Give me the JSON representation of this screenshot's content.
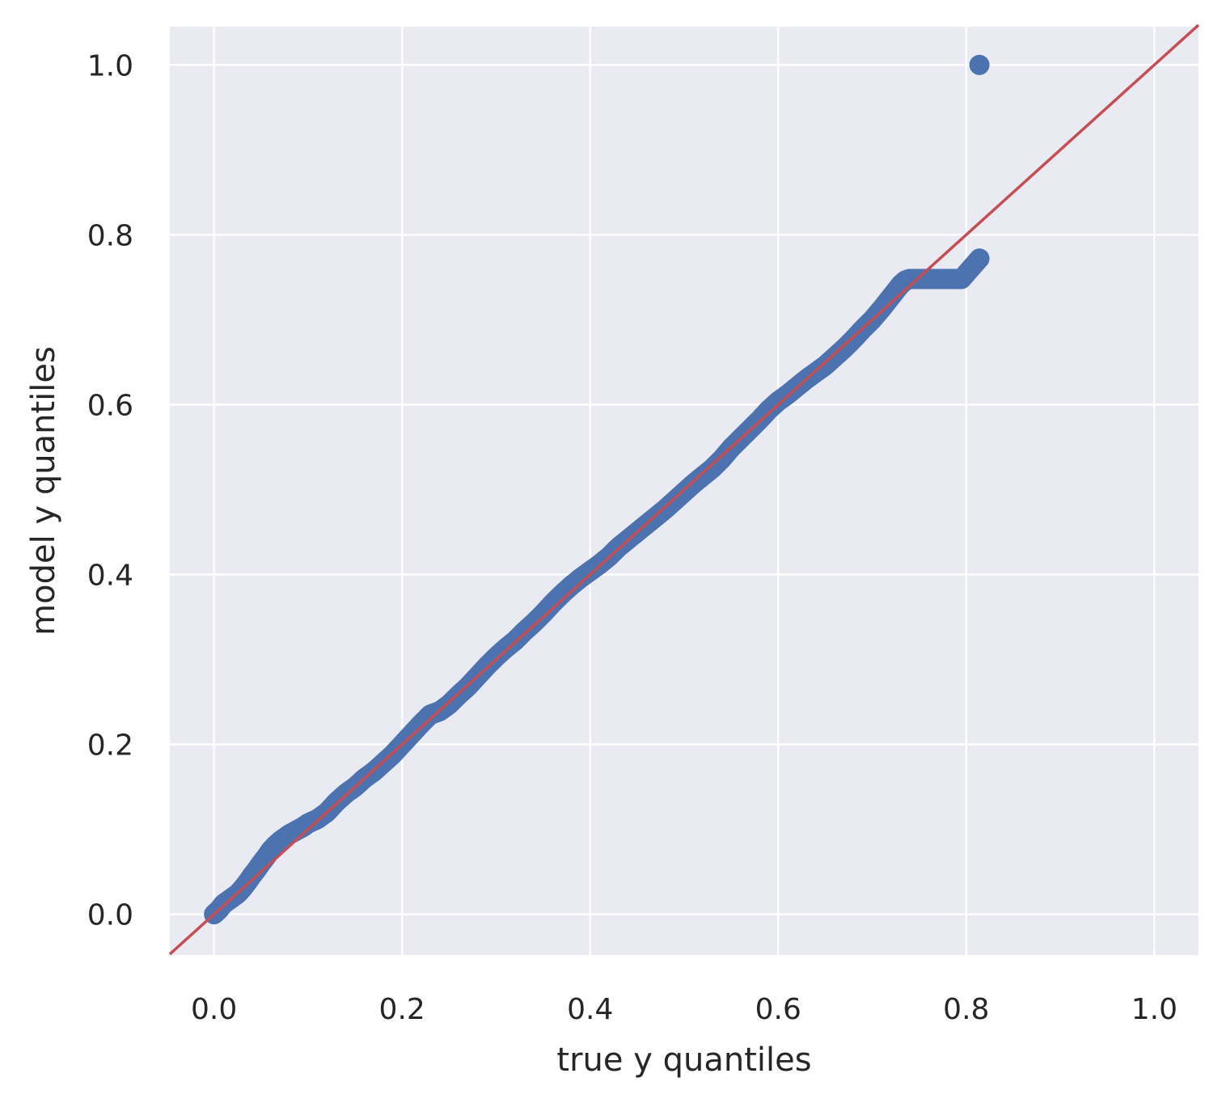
{
  "chart_data": {
    "type": "scatter",
    "title": "",
    "xlabel": "true y quantiles",
    "ylabel": "model y quantiles",
    "xlim": [
      -0.047,
      1.047
    ],
    "ylim": [
      -0.048,
      1.045
    ],
    "grid": true,
    "background_color": "#eaeaf2",
    "point_color": "#4c72b0",
    "reference_line_color": "#c44e52",
    "xticks": [
      0.0,
      0.2,
      0.4,
      0.6,
      0.8,
      1.0
    ],
    "xtick_labels": [
      "0.0",
      "0.2",
      "0.4",
      "0.6",
      "0.8",
      "1.0"
    ],
    "yticks": [
      0.0,
      0.2,
      0.4,
      0.6,
      0.8,
      1.0
    ],
    "ytick_labels": [
      "0.0",
      "0.2",
      "0.4",
      "0.6",
      "0.8",
      "1.0"
    ],
    "reference_line": {
      "x": [
        -0.047,
        1.047
      ],
      "y": [
        -0.047,
        1.047
      ]
    },
    "series": [
      {
        "x": [
          0.0,
          0.005,
          0.01,
          0.015,
          0.02,
          0.025,
          0.03,
          0.035,
          0.04,
          0.045,
          0.05,
          0.055,
          0.06,
          0.065,
          0.07,
          0.075,
          0.08,
          0.085,
          0.09,
          0.095,
          0.1,
          0.11,
          0.12,
          0.13,
          0.14,
          0.15,
          0.16,
          0.17,
          0.18,
          0.19,
          0.2,
          0.21,
          0.22,
          0.23,
          0.24,
          0.25,
          0.26,
          0.27,
          0.28,
          0.29,
          0.3,
          0.31,
          0.32,
          0.33,
          0.34,
          0.35,
          0.36,
          0.37,
          0.38,
          0.39,
          0.4,
          0.41,
          0.42,
          0.43,
          0.44,
          0.45,
          0.46,
          0.47,
          0.48,
          0.49,
          0.5,
          0.51,
          0.52,
          0.53,
          0.54,
          0.55,
          0.56,
          0.57,
          0.58,
          0.59,
          0.6,
          0.61,
          0.62,
          0.63,
          0.64,
          0.65,
          0.66,
          0.67,
          0.68,
          0.69,
          0.7,
          0.71,
          0.72,
          0.73,
          0.735,
          0.74,
          0.745,
          0.75,
          0.755,
          0.76,
          0.765,
          0.77,
          0.775,
          0.78,
          0.785,
          0.79,
          0.795,
          0.814,
          0.814
        ],
        "y": [
          0.0,
          0.005,
          0.012,
          0.016,
          0.02,
          0.024,
          0.03,
          0.037,
          0.045,
          0.052,
          0.06,
          0.067,
          0.075,
          0.081,
          0.086,
          0.09,
          0.094,
          0.097,
          0.1,
          0.103,
          0.107,
          0.112,
          0.12,
          0.132,
          0.142,
          0.15,
          0.16,
          0.168,
          0.178,
          0.188,
          0.2,
          0.212,
          0.224,
          0.235,
          0.239,
          0.247,
          0.258,
          0.268,
          0.28,
          0.292,
          0.303,
          0.313,
          0.322,
          0.333,
          0.343,
          0.354,
          0.366,
          0.377,
          0.387,
          0.396,
          0.404,
          0.412,
          0.421,
          0.432,
          0.441,
          0.45,
          0.459,
          0.468,
          0.477,
          0.487,
          0.497,
          0.507,
          0.516,
          0.525,
          0.536,
          0.549,
          0.56,
          0.571,
          0.582,
          0.594,
          0.604,
          0.612,
          0.621,
          0.63,
          0.638,
          0.646,
          0.656,
          0.666,
          0.677,
          0.689,
          0.7,
          0.713,
          0.727,
          0.741,
          0.746,
          0.748,
          0.748,
          0.748,
          0.748,
          0.748,
          0.748,
          0.748,
          0.748,
          0.748,
          0.748,
          0.748,
          0.748,
          0.772,
          1.0
        ]
      }
    ]
  }
}
